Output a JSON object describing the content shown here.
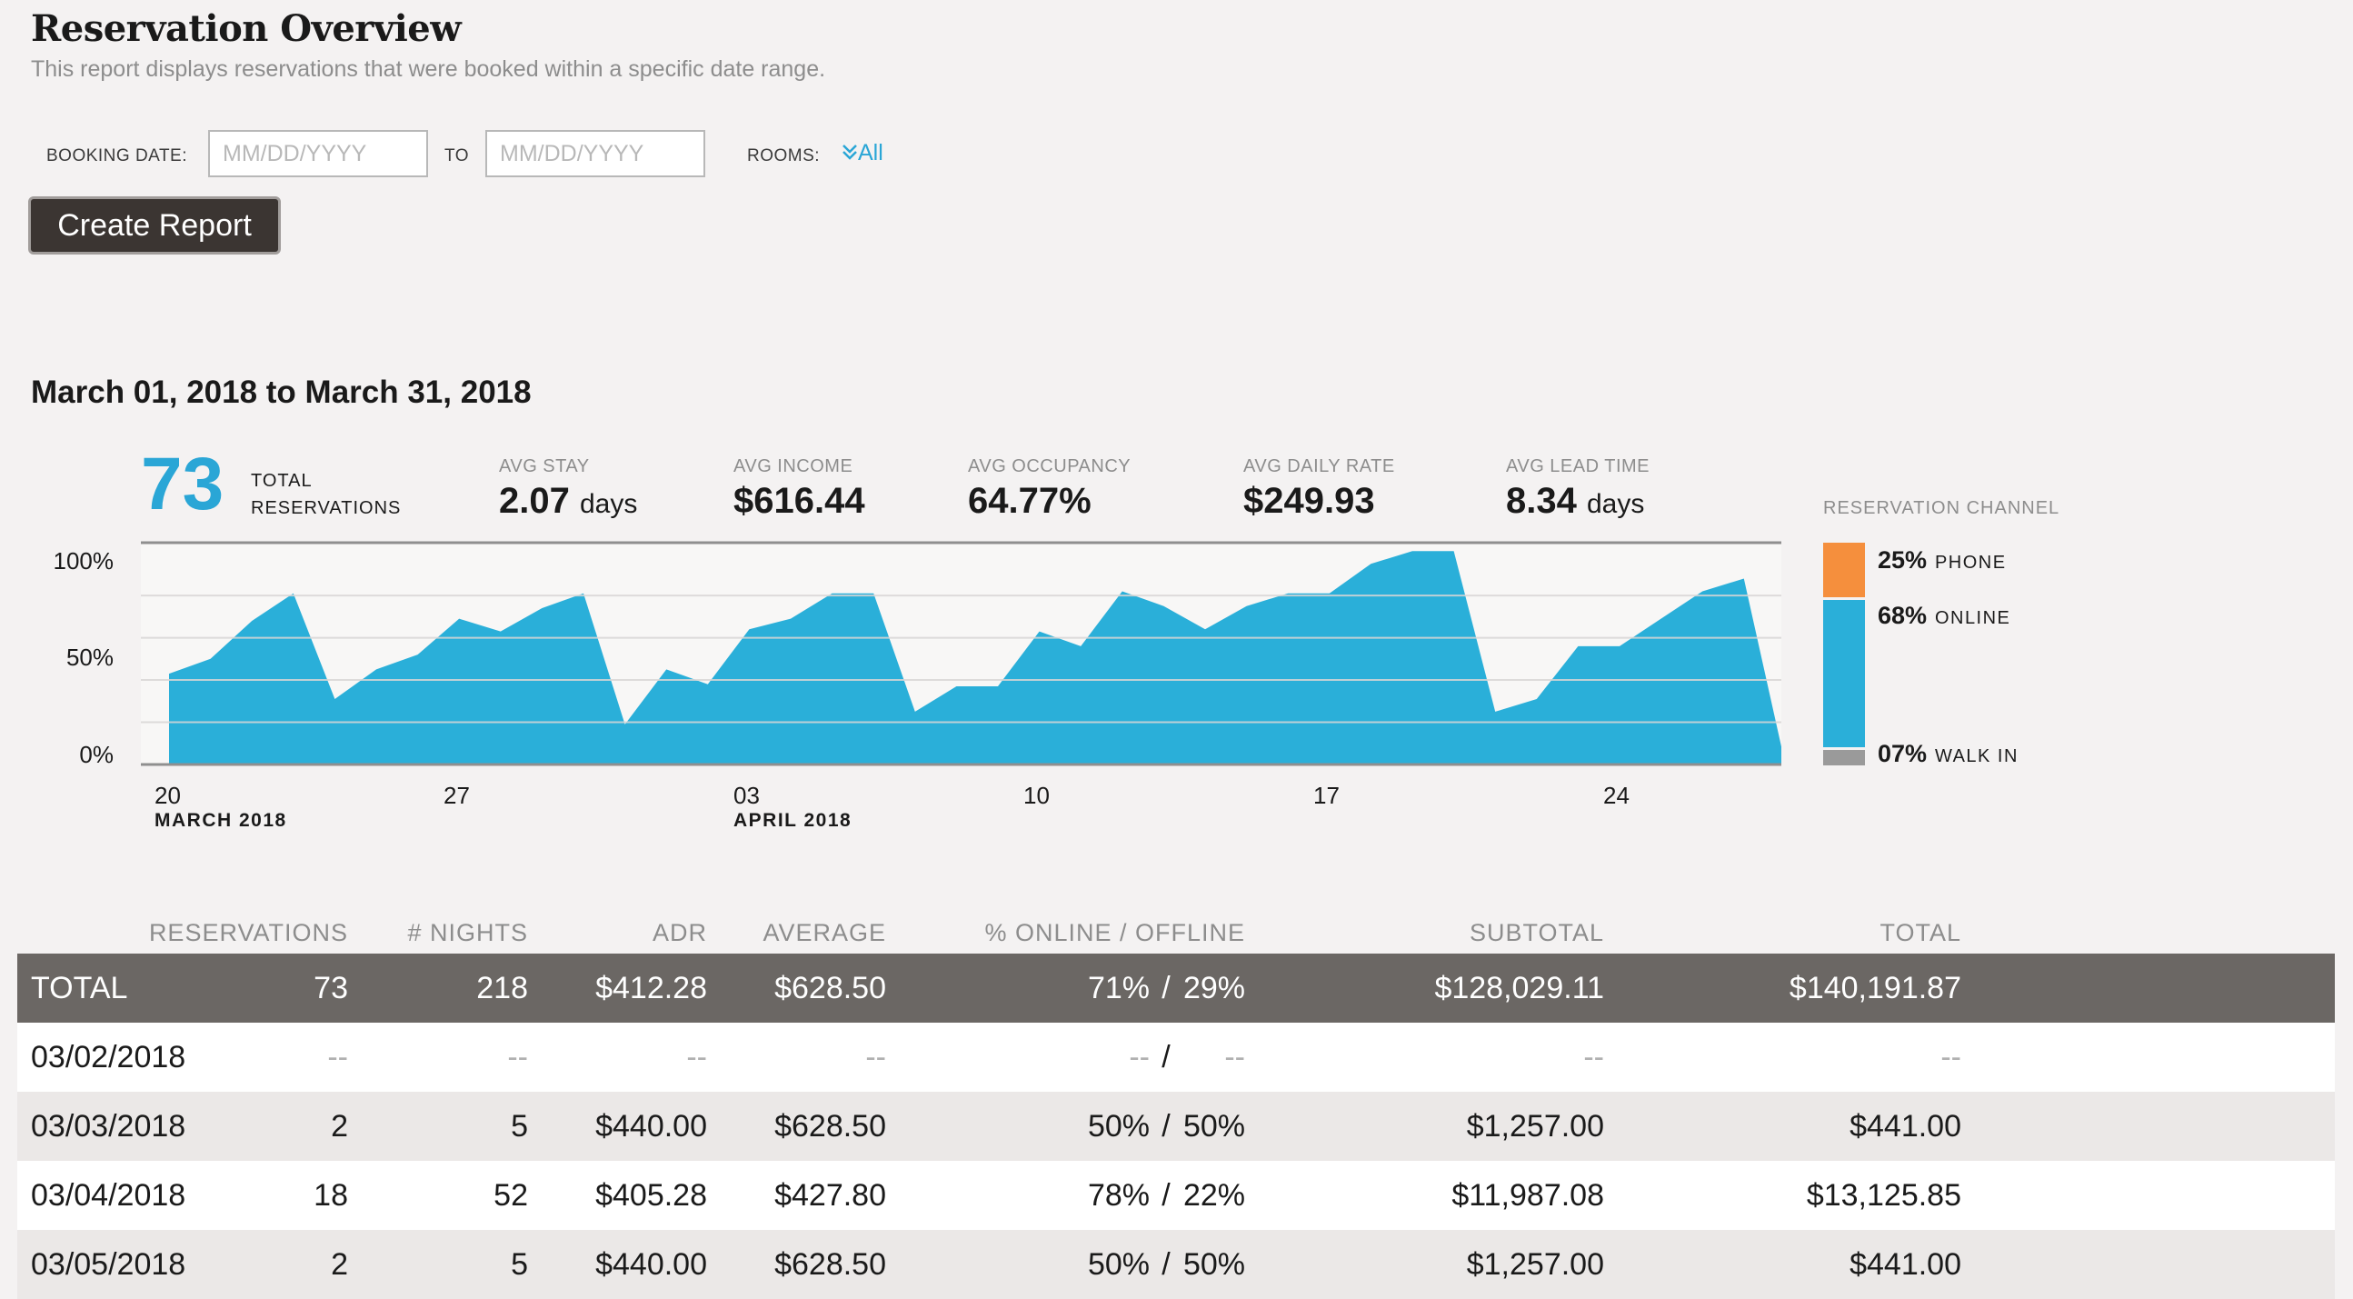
{
  "header": {
    "title": "Reservation Overview",
    "subtitle": "This report displays reservations that were booked within a specific date range."
  },
  "filters": {
    "booking_date_label": "BOOKING DATE:",
    "from_placeholder": "MM/DD/YYYY",
    "to_label": "TO",
    "to_placeholder": "MM/DD/YYYY",
    "rooms_label": "ROOMS:",
    "rooms_value": "All",
    "create_button": "Create Report"
  },
  "range_title": "March 01, 2018 to March 31, 2018",
  "stats": {
    "total_value": "73",
    "total_label_1": "TOTAL",
    "total_label_2": "RESERVATIONS",
    "items": [
      {
        "label": "AVG STAY",
        "value": "2.07",
        "unit": "days"
      },
      {
        "label": "AVG INCOME",
        "value": "$616.44",
        "unit": ""
      },
      {
        "label": "AVG OCCUPANCY",
        "value": "64.77%",
        "unit": ""
      },
      {
        "label": "AVG DAILY RATE",
        "value": "$249.93",
        "unit": ""
      },
      {
        "label": "AVG LEAD TIME",
        "value": "8.34",
        "unit": "days"
      }
    ]
  },
  "chart_data": {
    "type": "area",
    "color": "#2aafd9",
    "y_tick_labels": [
      "100%",
      "50%",
      "0%"
    ],
    "ylim": [
      0,
      100
    ],
    "grid": true,
    "x_tick_labels": [
      {
        "day": "20",
        "month": "MARCH 2018"
      },
      {
        "day": "27",
        "month": ""
      },
      {
        "day": "03",
        "month": "APRIL 2018"
      },
      {
        "day": "10",
        "month": ""
      },
      {
        "day": "17",
        "month": ""
      },
      {
        "day": "24",
        "month": ""
      }
    ],
    "x": [
      "03/20",
      "03/21",
      "03/22",
      "03/23",
      "03/24",
      "03/25",
      "03/26",
      "03/27",
      "03/28",
      "03/29",
      "03/30",
      "03/31",
      "04/01",
      "04/02",
      "04/03",
      "04/04",
      "04/05",
      "04/06",
      "04/07",
      "04/08",
      "04/09",
      "04/10",
      "04/11",
      "04/12",
      "04/13",
      "04/14",
      "04/15",
      "04/16",
      "04/17",
      "04/18",
      "04/19",
      "04/20",
      "04/21",
      "04/22",
      "04/23",
      "04/24",
      "04/25",
      "04/26",
      "04/27",
      "04/28"
    ],
    "values": [
      43,
      50,
      68,
      81,
      31,
      45,
      52,
      69,
      63,
      74,
      81,
      19,
      45,
      38,
      64,
      69,
      81,
      81,
      25,
      37,
      37,
      63,
      56,
      82,
      75,
      64,
      75,
      81,
      81,
      95,
      101,
      101,
      25,
      31,
      56,
      56,
      69,
      82,
      88,
      0
    ]
  },
  "channel": {
    "label": "RESERVATION CHANNEL",
    "items": [
      {
        "pct": "25%",
        "name": "PHONE",
        "value": 25,
        "color": "#f58f3d"
      },
      {
        "pct": "68%",
        "name": "ONLINE",
        "value": 68,
        "color": "#2aafd9"
      },
      {
        "pct": "07%",
        "name": "WALK IN",
        "value": 7,
        "color": "#9a9a9a"
      }
    ]
  },
  "table": {
    "columns": [
      "RESERVATIONS",
      "# NIGHTS",
      "ADR",
      "AVERAGE",
      "% ONLINE / OFFLINE",
      "SUBTOTAL",
      "TOTAL"
    ],
    "total_row": {
      "label": "TOTAL",
      "reservations": "73",
      "nights": "218",
      "adr": "$412.28",
      "average": "$628.50",
      "online": "71%",
      "sep": "/",
      "offline": "29%",
      "subtotal": "$128,029.11",
      "total": "$140,191.87"
    },
    "rows": [
      {
        "date": "03/02/2018",
        "reservations": "--",
        "nights": "--",
        "adr": "--",
        "average": "--",
        "online": "--",
        "sep": "/",
        "offline": "--",
        "subtotal": "--",
        "total": "--"
      },
      {
        "date": "03/03/2018",
        "reservations": "2",
        "nights": "5",
        "adr": "$440.00",
        "average": "$628.50",
        "online": "50%",
        "sep": "/",
        "offline": "50%",
        "subtotal": "$1,257.00",
        "total": "$441.00"
      },
      {
        "date": "03/04/2018",
        "reservations": "18",
        "nights": "52",
        "adr": "$405.28",
        "average": "$427.80",
        "online": "78%",
        "sep": "/",
        "offline": "22%",
        "subtotal": "$11,987.08",
        "total": "$13,125.85"
      },
      {
        "date": "03/05/2018",
        "reservations": "2",
        "nights": "5",
        "adr": "$440.00",
        "average": "$628.50",
        "online": "50%",
        "sep": "/",
        "offline": "50%",
        "subtotal": "$1,257.00",
        "total": "$441.00"
      }
    ]
  }
}
